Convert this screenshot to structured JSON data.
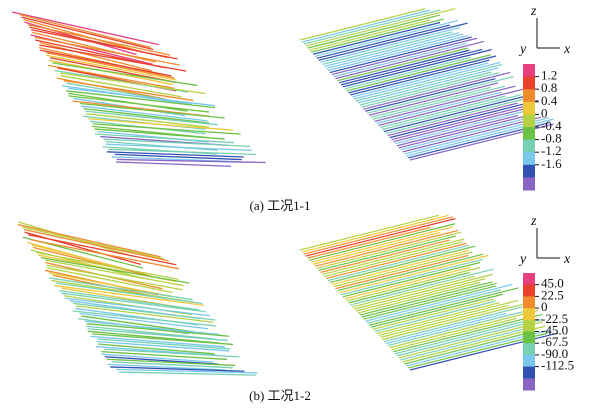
{
  "panels": [
    {
      "caption": "(a) 工况1-1",
      "axes": {
        "z": "z",
        "y": "y",
        "x": "x"
      },
      "colorbar": {
        "ticks": [
          "1.2",
          "0.8",
          "0.4",
          "0",
          "-0.4",
          "-0.8",
          "-1.2",
          "-1.6"
        ],
        "colors": [
          "#e8407e",
          "#e8402c",
          "#f08c2c",
          "#f0c83c",
          "#b4d244",
          "#6cc244",
          "#78d0b4",
          "#78c8ec",
          "#3050b4",
          "#8a64c4"
        ]
      }
    },
    {
      "caption": "(b) 工况1-2",
      "axes": {
        "z": "z",
        "y": "y",
        "x": "x"
      },
      "colorbar": {
        "ticks": [
          "45.0",
          "22.5",
          "0",
          "-22.5",
          "-45.0",
          "-67.5",
          "-90.0",
          "-112.5"
        ],
        "colors": [
          "#e8407e",
          "#e8402c",
          "#f08c2c",
          "#f0c83c",
          "#b4d244",
          "#6cc244",
          "#78d0b4",
          "#78c8ec",
          "#3050b4",
          "#8a64c4"
        ]
      }
    }
  ]
}
